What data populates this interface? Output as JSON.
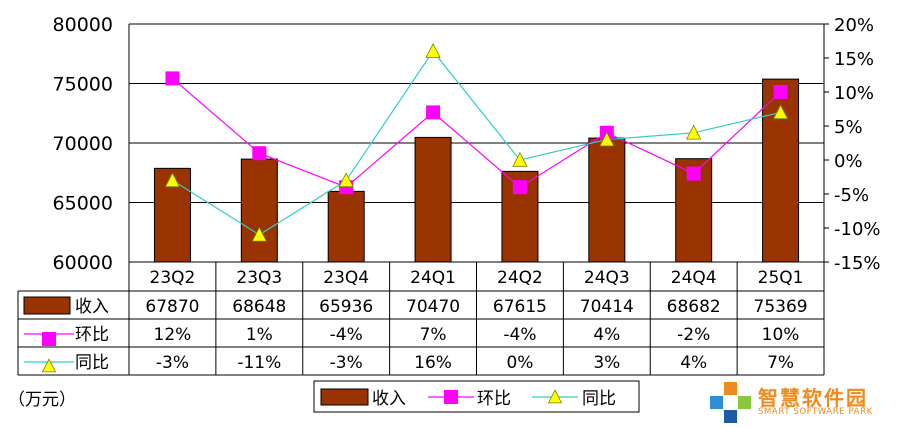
{
  "chart_data": {
    "type": "bar",
    "categories": [
      "23Q2",
      "23Q3",
      "23Q4",
      "24Q1",
      "24Q2",
      "24Q3",
      "24Q4",
      "25Q1"
    ],
    "unit_label": "（万元）",
    "y_left": {
      "min": 60000,
      "max": 80000,
      "ticks": [
        "60000",
        "65000",
        "70000",
        "75000",
        "80000"
      ]
    },
    "y_right": {
      "min": -15,
      "max": 20,
      "ticks": [
        "-15%",
        "-10%",
        "-5%",
        "0%",
        "5%",
        "10%",
        "15%",
        "20%"
      ]
    },
    "series": [
      {
        "name": "收入",
        "kind": "bar",
        "color": "#993300",
        "values": [
          67870,
          68648,
          65936,
          70470,
          67615,
          70414,
          68682,
          75369
        ],
        "labels": [
          "67870",
          "68648",
          "65936",
          "70470",
          "67615",
          "70414",
          "68682",
          "75369"
        ]
      },
      {
        "name": "环比",
        "kind": "line",
        "color": "#ff00ff",
        "marker": "square",
        "axis": "right",
        "values": [
          12,
          1,
          -4,
          7,
          -4,
          4,
          -2,
          10
        ],
        "labels": [
          "12%",
          "1%",
          "-4%",
          "7%",
          "-4%",
          "4%",
          "-2%",
          "10%"
        ]
      },
      {
        "name": "同比",
        "kind": "line",
        "color": "#33cccc",
        "marker": "triangle",
        "marker_color": "#ffff00",
        "axis": "right",
        "values": [
          -3,
          -11,
          -3,
          16,
          0,
          3,
          4,
          7
        ],
        "labels": [
          "-3%",
          "-11%",
          "-3%",
          "16%",
          "0%",
          "3%",
          "4%",
          "7%"
        ]
      }
    ],
    "legend_position": "bottom",
    "grid": true
  },
  "watermark": {
    "name_cn": "智慧软件园",
    "name_en": "SMART SOFTWARE PARK",
    "colors": [
      "#f08a1c",
      "#2e8fd8",
      "#8cc63f",
      "#1f5aa6"
    ]
  }
}
